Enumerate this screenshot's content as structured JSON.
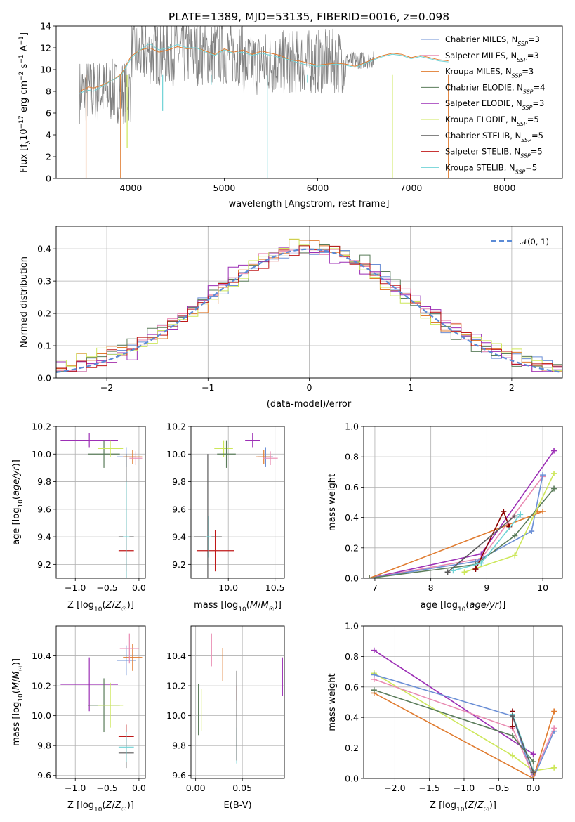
{
  "figure": {
    "title": "PLATE=1389, MJD=53135, FIBERID=0016, z=0.098"
  },
  "colors": {
    "blue": "#6b8fd6",
    "orange": "#e07b2f",
    "darkgreen": "#5a7c5a",
    "red": "#c01818",
    "purple": "#9c2fb5",
    "pink": "#e98bb2",
    "lime": "#cde75a",
    "gray": "#808080",
    "cyan": "#6fd3d6",
    "darkred": "#8b0000"
  },
  "chart_data": [
    {
      "id": "spectrum",
      "type": "line",
      "xlabel": "wavelength [Angstrom, rest frame]",
      "ylabel": "Flux [f_λ 10^-17 erg cm^-2 s^-1 A^-1]",
      "xlim": [
        3200,
        8620
      ],
      "ylim": [
        0,
        14
      ],
      "xticks": [
        4000,
        5000,
        6000,
        7000,
        8000
      ],
      "yticks": [
        0,
        2,
        4,
        6,
        8,
        10,
        12,
        14
      ],
      "grid": false,
      "legend_position": "top-right",
      "legend": [
        {
          "label": "Chabrier MILES, N",
          "sub": "SSP",
          "tail": "=3",
          "color": "#6b8fd6",
          "marker": "+"
        },
        {
          "label": "Salpeter MILES, N",
          "sub": "SSP",
          "tail": "=3",
          "color": "#e98bb2",
          "marker": "+"
        },
        {
          "label": "Kroupa MILES, N",
          "sub": "SSP",
          "tail": "=3",
          "color": "#e07b2f",
          "marker": "+"
        },
        {
          "label": "Chabrier ELODIE, N",
          "sub": "SSP",
          "tail": "=4",
          "color": "#5a7c5a",
          "marker": "+"
        },
        {
          "label": "Salpeter ELODIE, N",
          "sub": "SSP",
          "tail": "=3",
          "color": "#9c2fb5",
          "marker": ""
        },
        {
          "label": "Kroupa ELODIE, N",
          "sub": "SSP",
          "tail": "=5",
          "color": "#cde75a",
          "marker": ""
        },
        {
          "label": "Chabrier STELIB, N",
          "sub": "SSP",
          "tail": "=5",
          "color": "#5a5a5a",
          "marker": ""
        },
        {
          "label": "Salpeter STELIB, N",
          "sub": "SSP",
          "tail": "=5",
          "color": "#c01818",
          "marker": ""
        },
        {
          "label": "Kroupa STELIB, N",
          "sub": "SSP",
          "tail": "=5",
          "color": "#6fd3d6",
          "marker": ""
        }
      ],
      "series": [
        {
          "color": "#e07b2f",
          "x": [
            3450,
            3500,
            3550,
            3600,
            3700,
            3800,
            3900,
            4000,
            4100,
            4200,
            4300,
            4400,
            4500,
            4600,
            4700,
            4800,
            4900,
            5000,
            5100,
            5200,
            5300,
            5400,
            5500,
            5600,
            5700,
            5800,
            5900,
            6000,
            6100,
            6200,
            6300,
            6400,
            6500,
            6600,
            6700,
            6800,
            6900,
            7000,
            7100,
            7200,
            7300,
            7400
          ],
          "y": [
            8.0,
            8.2,
            8.4,
            8.3,
            8.6,
            9.0,
            9.6,
            11.2,
            11.8,
            12.0,
            11.6,
            11.8,
            12.1,
            11.9,
            12.0,
            11.7,
            11.4,
            11.9,
            11.6,
            11.8,
            11.4,
            11.7,
            11.5,
            11.3,
            10.9,
            10.8,
            10.6,
            10.4,
            10.5,
            10.6,
            10.5,
            10.3,
            10.6,
            11.0,
            11.3,
            11.5,
            11.4,
            11.1,
            11.3,
            11.1,
            10.9,
            10.8
          ]
        },
        {
          "color": "#6fd3d6",
          "x": [
            3450,
            3500,
            3550,
            3600,
            3700,
            3800,
            3900,
            4000,
            4100,
            4200,
            4300,
            4400,
            4500,
            4600,
            4700,
            4800,
            4900,
            5000,
            5100,
            5200,
            5300,
            5400,
            5500,
            5600,
            5700,
            5800,
            5900,
            6000,
            6100,
            6200,
            6300,
            6400,
            6500,
            6600,
            6700,
            6800,
            6900,
            7000,
            7100,
            7200,
            7300,
            7400
          ],
          "y": [
            7.8,
            8.0,
            8.1,
            8.0,
            8.5,
            9.0,
            9.5,
            11.0,
            11.8,
            12.4,
            11.8,
            12.0,
            12.3,
            12.0,
            12.0,
            11.6,
            11.3,
            11.8,
            11.5,
            11.6,
            11.3,
            11.5,
            11.3,
            11.1,
            10.9,
            10.6,
            10.4,
            10.3,
            10.4,
            10.5,
            10.4,
            10.2,
            10.5,
            10.9,
            11.2,
            11.4,
            11.3,
            11.0,
            11.2,
            11.0,
            10.8,
            10.7
          ]
        }
      ],
      "noisy_series": {
        "color": "#808080",
        "x_from": 3450,
        "x_to": 6600,
        "base": [
          8.0,
          11.5,
          10.5
        ],
        "amplitude": 3.0
      },
      "dips": [
        {
          "x": 3520,
          "to": 0.0,
          "color": "#e07b2f"
        },
        {
          "x": 3890,
          "to": 0.0,
          "color": "#e07b2f"
        },
        {
          "x": 3960,
          "to": 2.8,
          "color": "#cde75a"
        },
        {
          "x": 4340,
          "to": 6.2,
          "color": "#6fd3d6"
        },
        {
          "x": 4860,
          "to": 8.6,
          "color": "#6fd3d6"
        },
        {
          "x": 5460,
          "to": 0.0,
          "color": "#6fd3d6"
        },
        {
          "x": 5890,
          "to": 8.8,
          "color": "#6fd3d6"
        },
        {
          "x": 6800,
          "to": 0.0,
          "color": "#cde75a"
        },
        {
          "x": 7400,
          "to": 0.0,
          "color": "#e07b2f"
        }
      ]
    },
    {
      "id": "residuals",
      "type": "histogram",
      "xlabel": "(data-model)/error",
      "ylabel": "Normed distribution",
      "xlim": [
        -2.5,
        2.5
      ],
      "ylim": [
        0,
        0.47
      ],
      "xticks": [
        -2,
        -1,
        0,
        1,
        2
      ],
      "yticks": [
        0.0,
        0.1,
        0.2,
        0.3,
        0.4
      ],
      "grid": true,
      "legend_position": "top-right",
      "legend_label": "𝒩(0, 1)",
      "legend_color": "#5b8bd6",
      "bin_width": 0.1,
      "series": [
        {
          "color": "#6b8fd6",
          "offset": 0.01
        },
        {
          "color": "#e98bb2",
          "offset": -0.01
        },
        {
          "color": "#e07b2f",
          "offset": 0.015
        },
        {
          "color": "#5a7c5a",
          "offset": -0.015
        },
        {
          "color": "#9c2fb5",
          "offset": 0.02
        },
        {
          "color": "#cde75a",
          "offset": -0.02
        },
        {
          "color": "#c01818",
          "offset": 0.005
        }
      ]
    },
    {
      "id": "age_vs_Z",
      "type": "errorbar",
      "xlabel": "Z [log10(Z/Z☉)]",
      "ylabel": "age [log10(age/yr)]",
      "xlim": [
        -1.3,
        0.1
      ],
      "ylim": [
        9.1,
        10.2
      ],
      "xticks": [
        -1.0,
        -0.5,
        0.0
      ],
      "yticks": [
        9.2,
        9.4,
        9.6,
        9.8,
        10.0,
        10.2
      ],
      "grid": true,
      "points": [
        {
          "x": -0.78,
          "y": 10.1,
          "xe": 0.45,
          "ye": 0.05,
          "color": "#9c2fb5"
        },
        {
          "x": -0.55,
          "y": 10.0,
          "xe": 0.25,
          "ye": 0.1,
          "color": "#5a7c5a"
        },
        {
          "x": -0.45,
          "y": 10.04,
          "xe": 0.2,
          "ye": 0.06,
          "color": "#cde75a"
        },
        {
          "x": -0.2,
          "y": 9.98,
          "xe": 0.15,
          "ye": 0.07,
          "color": "#6b8fd6"
        },
        {
          "x": -0.1,
          "y": 9.98,
          "xe": 0.15,
          "ye": 0.05,
          "color": "#e07b2f"
        },
        {
          "x": -0.05,
          "y": 9.97,
          "xe": 0.1,
          "ye": 0.05,
          "color": "#e98bb2"
        },
        {
          "x": -0.2,
          "y": 9.4,
          "xe": 0.12,
          "ye": 0.6,
          "color": "#5a5a5a"
        },
        {
          "x": -0.2,
          "y": 9.3,
          "xe": 0.12,
          "ye": 0.15,
          "color": "#c01818"
        },
        {
          "x": -0.2,
          "y": 9.4,
          "xe": 0.05,
          "ye": 0.4,
          "color": "#6fd3d6"
        }
      ]
    },
    {
      "id": "age_vs_mass",
      "type": "errorbar",
      "xlabel": "mass [log10(M/M☉)]",
      "ylabel": "",
      "xlim": [
        9.6,
        10.6
      ],
      "ylim": [
        9.1,
        10.2
      ],
      "xticks": [
        10.0,
        10.5
      ],
      "yticks": [
        9.2,
        9.4,
        9.6,
        9.8,
        10.0,
        10.2
      ],
      "xtick_labels": [
        "10.0",
        "10.5"
      ],
      "grid": true,
      "points": [
        {
          "x": 10.26,
          "y": 10.1,
          "xe": 0.08,
          "ye": 0.05,
          "color": "#9c2fb5"
        },
        {
          "x": 9.95,
          "y": 10.04,
          "xe": 0.1,
          "ye": 0.06,
          "color": "#cde75a"
        },
        {
          "x": 9.98,
          "y": 10.0,
          "xe": 0.1,
          "ye": 0.1,
          "color": "#5a7c5a"
        },
        {
          "x": 10.4,
          "y": 9.98,
          "xe": 0.08,
          "ye": 0.07,
          "color": "#6b8fd6"
        },
        {
          "x": 10.38,
          "y": 9.98,
          "xe": 0.08,
          "ye": 0.05,
          "color": "#e07b2f"
        },
        {
          "x": 10.45,
          "y": 9.97,
          "xe": 0.08,
          "ye": 0.05,
          "color": "#e98bb2"
        },
        {
          "x": 9.78,
          "y": 9.4,
          "xe": 0.15,
          "ye": 0.6,
          "color": "#5a5a5a"
        },
        {
          "x": 9.86,
          "y": 9.3,
          "xe": 0.2,
          "ye": 0.15,
          "color": "#c01818"
        },
        {
          "x": 9.79,
          "y": 9.4,
          "xe": 0.03,
          "ye": 0.15,
          "color": "#6fd3d6"
        }
      ]
    },
    {
      "id": "weight_vs_age",
      "type": "line",
      "xlabel": "age [log10(age/yr)]",
      "ylabel": "mass weight",
      "xlim": [
        6.8,
        10.35
      ],
      "ylim": [
        0.0,
        1.0
      ],
      "xticks": [
        7,
        8,
        9,
        10
      ],
      "yticks": [
        0.0,
        0.2,
        0.4,
        0.6,
        0.8,
        1.0
      ],
      "grid": true,
      "series": [
        {
          "color": "#9c2fb5",
          "x": [
            6.9,
            8.9,
            10.2
          ],
          "y": [
            0.0,
            0.16,
            0.84
          ]
        },
        {
          "color": "#e98bb2",
          "x": [
            6.9,
            8.9,
            10.0
          ],
          "y": [
            0.0,
            0.13,
            0.67
          ]
        },
        {
          "color": "#6b8fd6",
          "x": [
            6.9,
            8.8,
            9.8,
            10.0
          ],
          "y": [
            0.0,
            0.11,
            0.31,
            0.68
          ]
        },
        {
          "color": "#e07b2f",
          "x": [
            6.9,
            10.0,
            9.9
          ],
          "y": [
            0.0,
            0.44,
            0.44
          ]
        },
        {
          "color": "#5a7c5a",
          "x": [
            6.9,
            8.8,
            9.5,
            10.2
          ],
          "y": [
            0.0,
            0.09,
            0.28,
            0.59
          ]
        },
        {
          "color": "#cde75a",
          "x": [
            8.6,
            9.5,
            10.2
          ],
          "y": [
            0.04,
            0.15,
            0.69
          ]
        },
        {
          "color": "#8b0000",
          "x": [
            8.8,
            9.3,
            9.4
          ],
          "y": [
            0.06,
            0.44,
            0.34
          ]
        },
        {
          "color": "#6fd3d6",
          "x": [
            8.4,
            8.9,
            9.6
          ],
          "y": [
            0.05,
            0.1,
            0.42
          ]
        },
        {
          "color": "#5a5a5a",
          "x": [
            8.3,
            9.5
          ],
          "y": [
            0.04,
            0.41
          ]
        }
      ]
    },
    {
      "id": "mass_vs_Z",
      "type": "errorbar",
      "xlabel": "Z [log10(Z/Z☉)]",
      "ylabel": "mass [log10(M/M☉)]",
      "xlim": [
        -1.3,
        0.1
      ],
      "ylim": [
        9.58,
        10.6
      ],
      "xticks": [
        -1.0,
        -0.5,
        0.0
      ],
      "yticks": [
        9.6,
        9.8,
        10.0,
        10.2,
        10.4
      ],
      "grid": true,
      "points": [
        {
          "x": -0.78,
          "y": 10.21,
          "xe": 0.45,
          "ye": 0.18,
          "color": "#9c2fb5"
        },
        {
          "x": -0.55,
          "y": 10.07,
          "xe": 0.25,
          "ye": 0.18,
          "color": "#5a7c5a"
        },
        {
          "x": -0.45,
          "y": 10.07,
          "xe": 0.2,
          "ye": 0.15,
          "color": "#cde75a"
        },
        {
          "x": -0.2,
          "y": 10.37,
          "xe": 0.15,
          "ye": 0.1,
          "color": "#6b8fd6"
        },
        {
          "x": -0.1,
          "y": 10.39,
          "xe": 0.15,
          "ye": 0.09,
          "color": "#e07b2f"
        },
        {
          "x": -0.15,
          "y": 10.45,
          "xe": 0.15,
          "ye": 0.1,
          "color": "#e98bb2"
        },
        {
          "x": -0.2,
          "y": 9.75,
          "xe": 0.12,
          "ye": 0.1,
          "color": "#5a5a5a"
        },
        {
          "x": -0.2,
          "y": 9.86,
          "xe": 0.12,
          "ye": 0.08,
          "color": "#c01818"
        },
        {
          "x": -0.2,
          "y": 9.79,
          "xe": 0.12,
          "ye": 0.1,
          "color": "#6fd3d6"
        }
      ]
    },
    {
      "id": "mass_vs_EBV",
      "type": "errorbar",
      "xlabel": "E(B-V)",
      "ylabel": "",
      "xlim": [
        -0.005,
        0.095
      ],
      "ylim": [
        9.58,
        10.6
      ],
      "xticks": [
        0.0,
        0.05
      ],
      "xtick_labels": [
        "0.00",
        "0.05"
      ],
      "yticks": [
        9.6,
        9.8,
        10.0,
        10.2,
        10.4
      ],
      "grid": true,
      "points": [
        {
          "x": 0.093,
          "y": 10.26,
          "xe": 0.0,
          "ye": 0.13,
          "color": "#9c2fb5"
        },
        {
          "x": 0.003,
          "y": 10.04,
          "xe": 0.0,
          "ye": 0.17,
          "color": "#5a7c5a"
        },
        {
          "x": 0.006,
          "y": 10.04,
          "xe": 0.0,
          "ye": 0.14,
          "color": "#cde75a"
        },
        {
          "x": 0.029,
          "y": 10.34,
          "xe": 0.0,
          "ye": 0.11,
          "color": "#e07b2f"
        },
        {
          "x": 0.017,
          "y": 10.44,
          "xe": 0.0,
          "ye": 0.11,
          "color": "#e98bb2"
        },
        {
          "x": 0.044,
          "y": 10.15,
          "xe": 0.0,
          "ye": 0.05,
          "color": "#c01818"
        },
        {
          "x": 0.044,
          "y": 9.8,
          "xe": 0.0,
          "ye": 0.12,
          "color": "#6fd3d6"
        },
        {
          "x": 0.044,
          "y": 10.0,
          "xe": 0.0,
          "ye": 0.3,
          "color": "#5a5a5a"
        }
      ]
    },
    {
      "id": "weight_vs_Z",
      "type": "line",
      "xlabel": "Z [log10(Z/Z☉)]",
      "ylabel": "mass weight",
      "xlim": [
        -2.45,
        0.42
      ],
      "ylim": [
        0.0,
        1.0
      ],
      "xticks": [
        -2.0,
        -1.5,
        -1.0,
        -0.5,
        0.0
      ],
      "yticks": [
        0.0,
        0.2,
        0.4,
        0.6,
        0.8,
        1.0
      ],
      "grid": true,
      "series": [
        {
          "color": "#9c2fb5",
          "x": [
            -2.3,
            0.0
          ],
          "y": [
            0.84,
            0.16
          ]
        },
        {
          "color": "#cde75a",
          "x": [
            -2.3,
            -0.3,
            0.0,
            0.3
          ],
          "y": [
            0.69,
            0.15,
            0.05,
            0.07
          ]
        },
        {
          "color": "#6b8fd6",
          "x": [
            -2.3,
            -0.3,
            0.0,
            0.3
          ],
          "y": [
            0.68,
            0.41,
            0.0,
            0.31
          ]
        },
        {
          "color": "#e98bb2",
          "x": [
            -2.3,
            -0.3,
            0.0,
            0.3
          ],
          "y": [
            0.65,
            0.33,
            0.02,
            0.33
          ]
        },
        {
          "color": "#e07b2f",
          "x": [
            -2.3,
            0.0,
            0.3
          ],
          "y": [
            0.56,
            0.0,
            0.44
          ]
        },
        {
          "color": "#5a7c5a",
          "x": [
            -2.3,
            -0.3,
            0.0
          ],
          "y": [
            0.58,
            0.28,
            0.11
          ]
        },
        {
          "color": "#8b0000",
          "x": [
            -0.3,
            -0.3
          ],
          "y": [
            0.34,
            0.44
          ]
        },
        {
          "color": "#6fd3d6",
          "x": [
            -0.3,
            0.0
          ],
          "y": [
            0.42,
            0.05
          ]
        },
        {
          "color": "#5a5a5a",
          "x": [
            -0.3,
            0.0
          ],
          "y": [
            0.41,
            0.04
          ]
        }
      ]
    }
  ]
}
